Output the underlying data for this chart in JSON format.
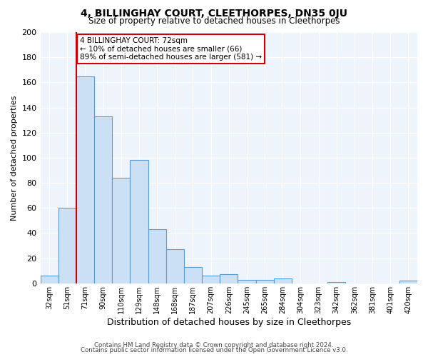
{
  "title": "4, BILLINGHAY COURT, CLEETHORPES, DN35 0JU",
  "subtitle": "Size of property relative to detached houses in Cleethorpes",
  "xlabel": "Distribution of detached houses by size in Cleethorpes",
  "ylabel": "Number of detached properties",
  "bar_labels": [
    "32sqm",
    "51sqm",
    "71sqm",
    "90sqm",
    "110sqm",
    "129sqm",
    "148sqm",
    "168sqm",
    "187sqm",
    "207sqm",
    "226sqm",
    "245sqm",
    "265sqm",
    "284sqm",
    "304sqm",
    "323sqm",
    "342sqm",
    "362sqm",
    "381sqm",
    "401sqm",
    "420sqm"
  ],
  "bar_values": [
    6,
    60,
    165,
    133,
    84,
    98,
    43,
    27,
    13,
    6,
    7,
    3,
    3,
    4,
    0,
    0,
    1,
    0,
    0,
    0,
    2
  ],
  "bar_color": "#cce0f5",
  "bar_edge_color": "#5b9bd5",
  "highlight_index": 2,
  "highlight_color": "#cc0000",
  "ylim": [
    0,
    200
  ],
  "yticks": [
    0,
    20,
    40,
    60,
    80,
    100,
    120,
    140,
    160,
    180,
    200
  ],
  "annotation_title": "4 BILLINGHAY COURT: 72sqm",
  "annotation_line1": "← 10% of detached houses are smaller (66)",
  "annotation_line2": "89% of semi-detached houses are larger (581) →",
  "annotation_box_color": "#ffffff",
  "annotation_box_edge": "#cc0000",
  "footer_line1": "Contains HM Land Registry data © Crown copyright and database right 2024.",
  "footer_line2": "Contains public sector information licensed under the Open Government Licence v3.0.",
  "background_color": "#ffffff",
  "plot_bg_color": "#eef4fb",
  "grid_color": "#ffffff"
}
